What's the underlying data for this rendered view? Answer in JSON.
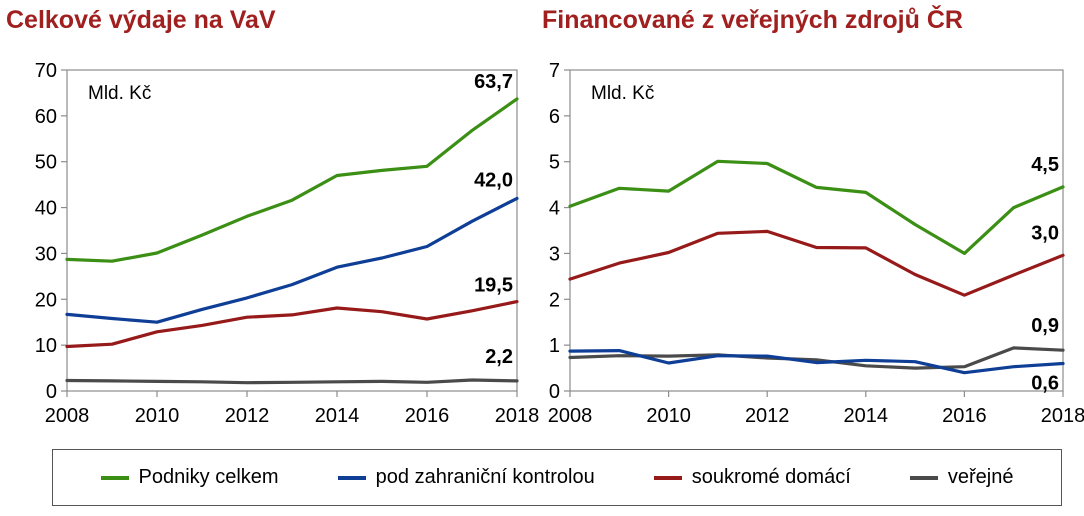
{
  "colors": {
    "podniky": "#3a8f14",
    "zahranicni": "#0e3e96",
    "domaci": "#971a1a",
    "verejne": "#4a4a4a",
    "title": "#a01f1f"
  },
  "legend": [
    {
      "key": "podniky",
      "label": "Podniky celkem",
      "color": "#3a8f14"
    },
    {
      "key": "zahranicni",
      "label": "pod zahraniční kontrolou",
      "color": "#0e3e96"
    },
    {
      "key": "domaci",
      "label": "soukromé domácí",
      "color": "#971a1a"
    },
    {
      "key": "verejne",
      "label": "veřejné",
      "color": "#4a4a4a"
    }
  ],
  "chart_data": [
    {
      "type": "line",
      "title": "Celkové výdaje na VaV",
      "unit_label": "Mld. Kč",
      "xlim": [
        2008,
        2018
      ],
      "ylim": [
        0,
        70
      ],
      "x_ticks": [
        2008,
        2010,
        2012,
        2014,
        2016,
        2018
      ],
      "y_ticks": [
        0,
        10,
        20,
        30,
        40,
        50,
        60,
        70
      ],
      "grid": false,
      "x": [
        2008,
        2009,
        2010,
        2011,
        2012,
        2013,
        2014,
        2015,
        2016,
        2017,
        2018
      ],
      "series": [
        {
          "key": "podniky",
          "name": "Podniky celkem",
          "color": "#3a8f14",
          "values": [
            28.7,
            28.3,
            30.1,
            34.0,
            38.1,
            41.6,
            47.0,
            48.1,
            49.0,
            56.8,
            63.7
          ],
          "end_label": "63,7"
        },
        {
          "key": "zahranicni",
          "name": "pod zahraniční kontrolou",
          "color": "#0e3e96",
          "values": [
            16.7,
            15.8,
            15.0,
            17.8,
            20.3,
            23.2,
            27.0,
            29.0,
            31.5,
            37.0,
            42.0
          ],
          "end_label": "42,0"
        },
        {
          "key": "domaci",
          "name": "soukromé domácí",
          "color": "#971a1a",
          "values": [
            9.7,
            10.2,
            12.9,
            14.3,
            16.1,
            16.6,
            18.1,
            17.3,
            15.7,
            17.5,
            19.5
          ],
          "end_label": "19,5"
        },
        {
          "key": "verejne",
          "name": "veřejné",
          "color": "#4a4a4a",
          "values": [
            2.3,
            2.2,
            2.1,
            2.0,
            1.8,
            1.9,
            2.0,
            2.1,
            1.9,
            2.4,
            2.2
          ],
          "end_label": "2,2"
        }
      ]
    },
    {
      "type": "line",
      "title": "Financované z veřejných zdrojů ČR",
      "unit_label": "Mld. Kč",
      "xlim": [
        2008,
        2018
      ],
      "ylim": [
        0,
        7
      ],
      "x_ticks": [
        2008,
        2010,
        2012,
        2014,
        2016,
        2018
      ],
      "y_ticks": [
        0,
        1,
        2,
        3,
        4,
        5,
        6,
        7
      ],
      "grid": false,
      "x": [
        2008,
        2009,
        2010,
        2011,
        2012,
        2013,
        2014,
        2015,
        2016,
        2017,
        2018
      ],
      "series": [
        {
          "key": "podniky",
          "name": "Podniky celkem",
          "color": "#3a8f14",
          "values": [
            4.03,
            4.42,
            4.36,
            5.01,
            4.96,
            4.44,
            4.33,
            3.63,
            3.0,
            4.0,
            4.45
          ],
          "end_label": "4,5"
        },
        {
          "key": "domaci",
          "name": "soukromé domácí",
          "color": "#971a1a",
          "values": [
            2.44,
            2.79,
            3.02,
            3.44,
            3.48,
            3.13,
            3.12,
            2.54,
            2.09,
            2.53,
            2.96
          ],
          "end_label": "3,0"
        },
        {
          "key": "verejne",
          "name": "veřejné",
          "color": "#4a4a4a",
          "values": [
            0.73,
            0.77,
            0.76,
            0.79,
            0.72,
            0.68,
            0.55,
            0.5,
            0.53,
            0.94,
            0.89
          ],
          "end_label": "0,9"
        },
        {
          "key": "zahranicni",
          "name": "pod zahraniční kontrolou",
          "color": "#0e3e96",
          "values": [
            0.87,
            0.88,
            0.61,
            0.77,
            0.76,
            0.62,
            0.67,
            0.64,
            0.4,
            0.53,
            0.6
          ],
          "end_label": "0,6"
        }
      ]
    }
  ]
}
